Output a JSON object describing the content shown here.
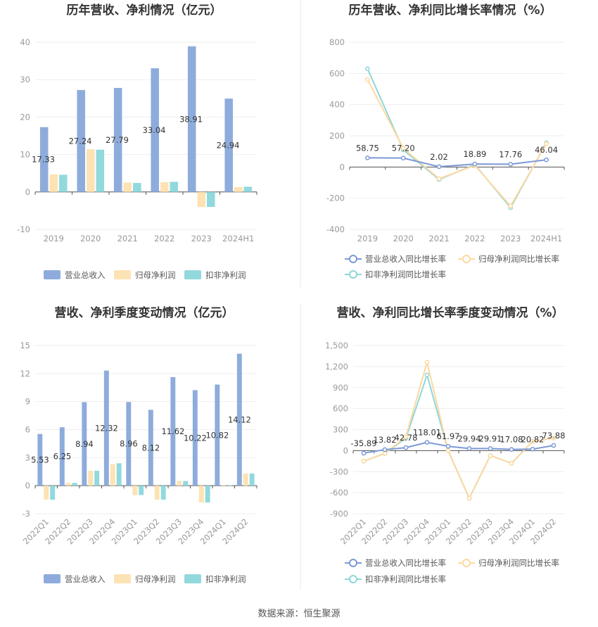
{
  "colors": {
    "revenue": "#8eacdb",
    "net_profit": "#fde2b3",
    "deducted_profit": "#91d9dc",
    "revenue_growth": "#7c9ad6",
    "net_profit_growth": "#fdd9a0",
    "deducted_profit_growth": "#8fd7d8",
    "divider": "#e6e6e6",
    "grid": "#eeeeee"
  },
  "source": "数据来源：恒生聚源",
  "chart_data": [
    {
      "type": "bar",
      "title": "历年营收、净利情况（亿元）",
      "categories": [
        "2019",
        "2020",
        "2021",
        "2022",
        "2023",
        "2024H1"
      ],
      "series": [
        {
          "name": "营业总收入",
          "values": [
            17.33,
            27.24,
            27.79,
            33.04,
            38.91,
            24.94
          ]
        },
        {
          "name": "归母净利润",
          "values": [
            4.7,
            11.4,
            2.5,
            2.6,
            -4.0,
            1.3
          ]
        },
        {
          "name": "扣非净利润",
          "values": [
            4.6,
            11.3,
            2.4,
            2.7,
            -4.0,
            1.4
          ]
        }
      ],
      "data_labels": [
        "17.33",
        "27.24",
        "27.79",
        "33.04",
        "38.91",
        "24.94"
      ],
      "yticks": [
        "40",
        "30",
        "20",
        "10",
        "0",
        "-10"
      ],
      "ylim": [
        -10,
        40
      ],
      "legend": "bottom"
    },
    {
      "type": "line",
      "title": "历年营收、净利同比增长率情况（%）",
      "categories": [
        "2019",
        "2020",
        "2021",
        "2022",
        "2023",
        "2024H1"
      ],
      "series": [
        {
          "name": "营业总收入同比增长率",
          "values": [
            58.75,
            57.2,
            2.02,
            18.89,
            17.76,
            46.04
          ]
        },
        {
          "name": "归母净利润同比增长率",
          "values": [
            560,
            120,
            -75,
            10,
            -250,
            150
          ]
        },
        {
          "name": "扣非净利润同比增长率",
          "values": [
            630,
            110,
            -80,
            15,
            -260,
            155
          ]
        }
      ],
      "data_labels": [
        "58.75",
        "57.20",
        "2.02",
        "18.89",
        "17.76",
        "46.04"
      ],
      "yticks": [
        "800",
        "600",
        "400",
        "200",
        "0",
        "-200",
        "-400"
      ],
      "ylim": [
        -400,
        800
      ],
      "legend": "bottom"
    },
    {
      "type": "bar",
      "title": "营收、净利季度变动情况（亿元）",
      "categories": [
        "2022Q1",
        "2022Q2",
        "2022Q3",
        "2022Q4",
        "2023Q1",
        "2023Q2",
        "2023Q3",
        "2023Q4",
        "2024Q1",
        "2024Q2"
      ],
      "series": [
        {
          "name": "营业总收入",
          "values": [
            5.53,
            6.25,
            8.94,
            12.32,
            8.96,
            8.12,
            11.62,
            10.22,
            10.82,
            14.12
          ]
        },
        {
          "name": "归母净利润",
          "values": [
            -1.5,
            0.3,
            1.6,
            2.3,
            -1.0,
            -1.5,
            0.5,
            -1.8,
            0.05,
            1.3
          ]
        },
        {
          "name": "扣非净利润",
          "values": [
            -1.5,
            0.3,
            1.6,
            2.4,
            -1.0,
            -1.5,
            0.5,
            -1.8,
            0.05,
            1.3
          ]
        }
      ],
      "data_labels": [
        "5.53",
        "6.25",
        "8.94",
        "12.32",
        "8.96",
        "8.12",
        "11.62",
        "10.22",
        "10.82",
        "14.12"
      ],
      "yticks": [
        "15",
        "12",
        "9",
        "6",
        "3",
        "0",
        "-3"
      ],
      "ylim": [
        -3,
        15
      ],
      "legend": "bottom"
    },
    {
      "type": "line",
      "title": "营收、净利同比增长率季度变动情况（%）",
      "categories": [
        "2022Q1",
        "2022Q2",
        "2022Q3",
        "2022Q4",
        "2023Q1",
        "2023Q2",
        "2023Q3",
        "2023Q4",
        "2024Q1",
        "2024Q2"
      ],
      "series": [
        {
          "name": "营业总收入同比增长率",
          "values": [
            -35.89,
            13.82,
            42.78,
            118.01,
            61.97,
            29.94,
            29.91,
            17.08,
            20.82,
            73.88
          ]
        },
        {
          "name": "归母净利润同比增长率",
          "values": [
            -150,
            -40,
            200,
            1260,
            0,
            -680,
            -70,
            -180,
            130,
            180
          ]
        },
        {
          "name": "扣非净利润同比增长率",
          "values": [
            -150,
            -40,
            180,
            1080,
            0,
            -680,
            -70,
            -180,
            130,
            180
          ]
        }
      ],
      "data_labels": [
        "-35.89",
        "13.82",
        "42.78",
        "118.01",
        "61.97",
        "29.94",
        "29.91",
        "17.08",
        "20.82",
        "73.88"
      ],
      "yticks": [
        "1,500",
        "1,200",
        "900",
        "600",
        "300",
        "0",
        "-300",
        "-600",
        "-900"
      ],
      "ylim": [
        -900,
        1500
      ],
      "legend": "bottom"
    }
  ]
}
